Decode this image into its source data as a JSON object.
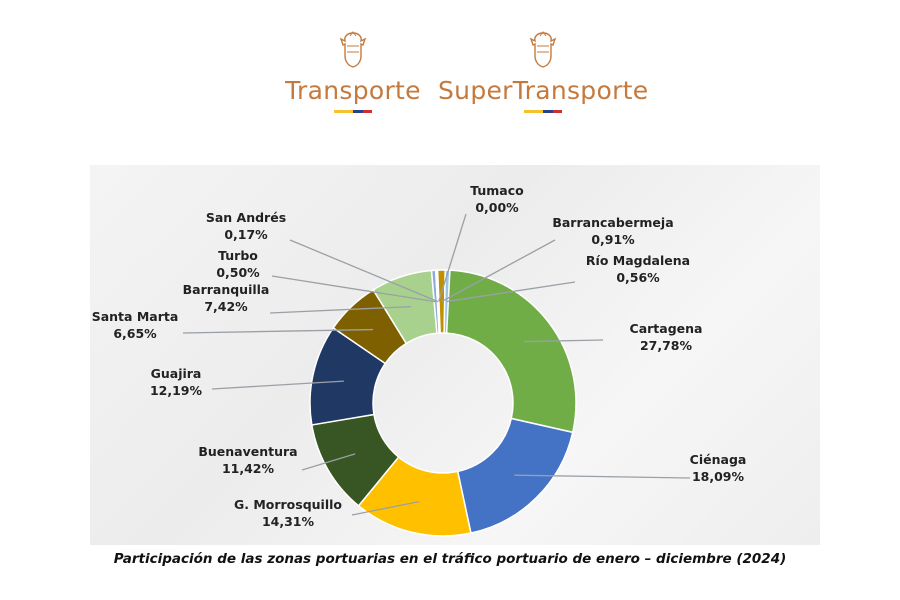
{
  "header": {
    "logos": [
      {
        "name": "Transporte",
        "flag": [
          "#f2c230",
          "#2b3f8f",
          "#d02f2f"
        ]
      },
      {
        "name": "SuperTransporte",
        "flag": [
          "#f2c230",
          "#2b3f8f",
          "#d02f2f"
        ]
      }
    ],
    "seal_color": "#c47a3d"
  },
  "chart_data": {
    "type": "pie",
    "donut": true,
    "title": "Participación de las zonas portuarias en el tráfico portuario de enero – diciembre (2024)",
    "legend": "none",
    "slices": [
      {
        "name": "Cartagena",
        "label": "27,78%",
        "value": 27.78,
        "color": "#70ad47"
      },
      {
        "name": "Ciénaga",
        "label": "18,09%",
        "value": 18.09,
        "color": "#4472c4"
      },
      {
        "name": "G. Morrosquillo",
        "label": "14,31%",
        "value": 14.31,
        "color": "#ffc000"
      },
      {
        "name": "Buenaventura",
        "label": "11,42%",
        "value": 11.42,
        "color": "#375623"
      },
      {
        "name": "Guajira",
        "label": "12,19%",
        "value": 12.19,
        "color": "#203864"
      },
      {
        "name": "Santa Marta",
        "label": "6,65%",
        "value": 6.65,
        "color": "#7f6000"
      },
      {
        "name": "Barranquilla",
        "label": "7,42%",
        "value": 7.42,
        "color": "#a9d18e"
      },
      {
        "name": "Turbo",
        "label": "0,50%",
        "value": 0.5,
        "color": "#8faadc"
      },
      {
        "name": "San Andrés",
        "label": "0,17%",
        "value": 0.17,
        "color": "#c5e0b4"
      },
      {
        "name": "Tumaco",
        "label": "0,00%",
        "value": 0.0,
        "color": "#ffd966"
      },
      {
        "name": "Barrancabermeja",
        "label": "0,91%",
        "value": 0.91,
        "color": "#bf9000"
      },
      {
        "name": "Río Magdalena",
        "label": "0,56%",
        "value": 0.56,
        "color": "#9dc3e6"
      }
    ]
  }
}
